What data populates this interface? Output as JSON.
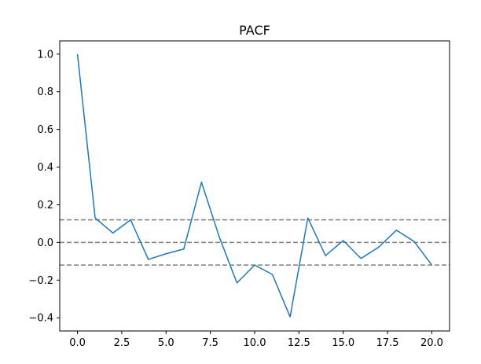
{
  "chart_data": {
    "type": "line",
    "title": "PACF",
    "xlabel": "",
    "ylabel": "",
    "xlim": [
      -1,
      21
    ],
    "ylim": [
      -0.47,
      1.07
    ],
    "x_ticks": [
      0.0,
      2.5,
      5.0,
      7.5,
      10.0,
      12.5,
      15.0,
      17.5,
      20.0
    ],
    "x_tick_labels": [
      "0.0",
      "2.5",
      "5.0",
      "7.5",
      "10.0",
      "12.5",
      "15.0",
      "17.5",
      "20.0"
    ],
    "y_ticks": [
      -0.4,
      -0.2,
      0.0,
      0.2,
      0.4,
      0.6,
      0.8,
      1.0
    ],
    "y_tick_labels": [
      "−0.4",
      "−0.2",
      "0.0",
      "0.2",
      "0.4",
      "0.6",
      "0.8",
      "1.0"
    ],
    "grid": false,
    "series": [
      {
        "color": "#1f77b4",
        "x": [
          0,
          1,
          2,
          3,
          4,
          5,
          6,
          7,
          8,
          9,
          10,
          11,
          12,
          13,
          14,
          15,
          16,
          17,
          18,
          19,
          20
        ],
        "values": [
          1.0,
          0.13,
          0.05,
          0.12,
          -0.09,
          -0.06,
          -0.035,
          0.32,
          0.03,
          -0.215,
          -0.12,
          -0.17,
          -0.395,
          0.13,
          -0.07,
          0.01,
          -0.085,
          -0.025,
          0.065,
          0.005,
          -0.12
        ]
      }
    ],
    "hlines": [
      {
        "y": 0.12,
        "style": "dashed",
        "color": "#808080"
      },
      {
        "y": 0.0,
        "style": "dashed",
        "color": "#808080"
      },
      {
        "y": -0.12,
        "style": "dashed",
        "color": "#808080"
      }
    ]
  }
}
